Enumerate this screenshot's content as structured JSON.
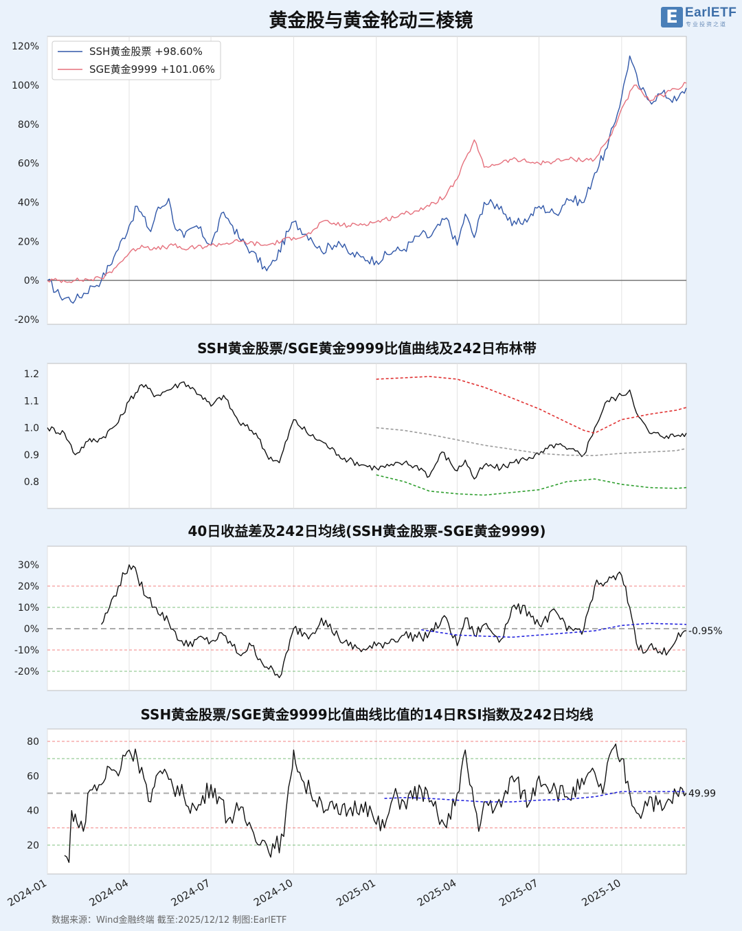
{
  "header": {
    "title": "黄金股与黄金轮动三棱镜",
    "logo_mark": "E",
    "logo_text": "EarlETF",
    "logo_sub": "专业投资之道"
  },
  "footer": {
    "source": "数据来源：Wind金融终端 截至:2025/12/12 制图:EarlETF"
  },
  "colors": {
    "ssh": "#3057a8",
    "sge": "#e5707c",
    "upper": "#e03030",
    "mid": "#999999",
    "lower": "#2e9e2e",
    "ma": "#2222dd",
    "red_guide": "#f08080",
    "green_guide": "#7cbf7c"
  },
  "x_ticks": [
    "2024-01",
    "2024-04",
    "2024-07",
    "2024-10",
    "2025-01",
    "2025-04",
    "2025-07",
    "2025-10"
  ],
  "chart_data": [
    {
      "type": "line",
      "title": "",
      "ylim": [
        -20,
        125
      ],
      "y_ticks": [
        "120%",
        "100%",
        "80%",
        "60%",
        "40%",
        "20%",
        "0%",
        "-20%"
      ],
      "legend_position": "top-left",
      "legend": [
        "SSH黄金股票  +98.60%",
        "SGE黄金9999  +101.06%"
      ],
      "series": [
        {
          "name": "SSH黄金股票",
          "x": [
            "2024-01",
            "2024-01-15",
            "2024-02",
            "2024-02-20",
            "2024-03",
            "2024-03-15",
            "2024-04",
            "2024-04-10",
            "2024-04-25",
            "2024-05",
            "2024-05-15",
            "2024-05-20",
            "2024-06",
            "2024-06-15",
            "2024-07",
            "2024-07-15",
            "2024-07-25",
            "2024-08",
            "2024-08-15",
            "2024-09",
            "2024-09-10",
            "2024-09-25",
            "2024-10",
            "2024-10-20",
            "2024-11",
            "2024-11-20",
            "2024-12",
            "2024-12-15",
            "2025-01",
            "2025-01-20",
            "2025-02",
            "2025-02-20",
            "2025-03",
            "2025-03-20",
            "2025-04",
            "2025-04-10",
            "2025-04-20",
            "2025-05",
            "2025-05-20",
            "2025-06",
            "2025-06-20",
            "2025-07",
            "2025-07-20",
            "2025-08",
            "2025-08-20",
            "2025-09",
            "2025-09-15",
            "2025-10",
            "2025-10-10",
            "2025-10-20",
            "2025-11",
            "2025-11-15",
            "2025-12",
            "2025-12-12"
          ],
          "values": [
            0,
            -8,
            -10,
            -3,
            0,
            12,
            28,
            38,
            25,
            35,
            42,
            30,
            22,
            28,
            18,
            35,
            28,
            22,
            15,
            5,
            10,
            25,
            30,
            22,
            15,
            20,
            14,
            12,
            10,
            15,
            16,
            24,
            22,
            32,
            18,
            34,
            22,
            40,
            38,
            28,
            32,
            38,
            34,
            42,
            40,
            55,
            68,
            94,
            115,
            100,
            92,
            96,
            92,
            98.6
          ]
        },
        {
          "name": "SGE黄金9999",
          "x": [
            "2024-01",
            "2024-02",
            "2024-03",
            "2024-03-15",
            "2024-04",
            "2024-04-15",
            "2024-05",
            "2024-05-20",
            "2024-06",
            "2024-07",
            "2024-08",
            "2024-09",
            "2024-10",
            "2024-10-20",
            "2024-11",
            "2024-12",
            "2025-01",
            "2025-02",
            "2025-03",
            "2025-03-20",
            "2025-04",
            "2025-04-20",
            "2025-05",
            "2025-06",
            "2025-07",
            "2025-08",
            "2025-09",
            "2025-09-20",
            "2025-10",
            "2025-10-15",
            "2025-11",
            "2025-12",
            "2025-12-12"
          ],
          "values": [
            0,
            0,
            1,
            6,
            14,
            18,
            16,
            18,
            16,
            18,
            20,
            18,
            22,
            24,
            30,
            28,
            30,
            34,
            38,
            44,
            52,
            72,
            58,
            62,
            60,
            62,
            62,
            75,
            88,
            100,
            92,
            98,
            101.06
          ]
        }
      ]
    },
    {
      "type": "line",
      "title": "SSH黄金股票/SGE黄金9999比值曲线及242日布林带",
      "ylim": [
        0.71,
        1.24
      ],
      "y_ticks": [
        "1.2",
        "1.1",
        "1.0",
        "0.9",
        "0.8"
      ],
      "series": [
        {
          "name": "比值",
          "x": [
            "2024-01",
            "2024-01-20",
            "2024-02",
            "2024-02-15",
            "2024-03",
            "2024-03-20",
            "2024-04",
            "2024-04-15",
            "2024-05",
            "2024-05-20",
            "2024-06",
            "2024-06-20",
            "2024-07",
            "2024-07-15",
            "2024-08",
            "2024-08-20",
            "2024-09",
            "2024-09-15",
            "2024-10",
            "2024-10-20",
            "2024-11",
            "2024-11-20",
            "2024-12",
            "2024-12-20",
            "2025-01",
            "2025-01-20",
            "2025-02",
            "2025-02-20",
            "2025-03",
            "2025-03-15",
            "2025-04",
            "2025-04-10",
            "2025-04-20",
            "2025-05",
            "2025-05-20",
            "2025-06",
            "2025-06-20",
            "2025-07",
            "2025-07-20",
            "2025-08",
            "2025-08-20",
            "2025-09",
            "2025-09-15",
            "2025-10",
            "2025-10-10",
            "2025-10-20",
            "2025-11",
            "2025-11-20",
            "2025-12",
            "2025-12-12"
          ],
          "values": [
            1.0,
            0.98,
            0.9,
            0.95,
            0.96,
            1.02,
            1.1,
            1.16,
            1.12,
            1.15,
            1.17,
            1.12,
            1.08,
            1.12,
            1.02,
            0.98,
            0.9,
            0.87,
            1.03,
            0.97,
            0.95,
            0.9,
            0.88,
            0.86,
            0.85,
            0.86,
            0.87,
            0.85,
            0.82,
            0.91,
            0.84,
            0.88,
            0.81,
            0.86,
            0.85,
            0.87,
            0.89,
            0.9,
            0.94,
            0.92,
            0.9,
            1.0,
            1.1,
            1.12,
            1.14,
            1.04,
            0.98,
            0.97,
            0.97,
            0.98
          ]
        },
        {
          "name": "上轨",
          "x": [
            "2025-01",
            "2025-02",
            "2025-03",
            "2025-04",
            "2025-05",
            "2025-06",
            "2025-07",
            "2025-08",
            "2025-08-20",
            "2025-09",
            "2025-10",
            "2025-11",
            "2025-12",
            "2025-12-12"
          ],
          "values": [
            1.18,
            1.185,
            1.19,
            1.18,
            1.15,
            1.11,
            1.07,
            1.02,
            0.99,
            0.98,
            1.03,
            1.05,
            1.065,
            1.075
          ]
        },
        {
          "name": "中轨",
          "x": [
            "2025-01",
            "2025-02",
            "2025-03",
            "2025-04",
            "2025-05",
            "2025-06",
            "2025-07",
            "2025-08",
            "2025-09",
            "2025-10",
            "2025-11",
            "2025-12",
            "2025-12-12"
          ],
          "values": [
            1.0,
            0.99,
            0.975,
            0.955,
            0.935,
            0.92,
            0.905,
            0.898,
            0.897,
            0.905,
            0.91,
            0.915,
            0.923
          ]
        },
        {
          "name": "下轨",
          "x": [
            "2025-01",
            "2025-02",
            "2025-03",
            "2025-04",
            "2025-05",
            "2025-06",
            "2025-07",
            "2025-08",
            "2025-09",
            "2025-10",
            "2025-11",
            "2025-12",
            "2025-12-12"
          ],
          "values": [
            0.825,
            0.8,
            0.765,
            0.755,
            0.75,
            0.76,
            0.77,
            0.8,
            0.81,
            0.79,
            0.778,
            0.775,
            0.778
          ]
        }
      ]
    },
    {
      "type": "line",
      "title": "40日收益差及242日均线(SSH黄金股票-SGE黄金9999)",
      "ylim": [
        -28,
        38
      ],
      "y_ticks": [
        "30%",
        "20%",
        "10%",
        "0%",
        "-10%",
        "-20%"
      ],
      "guides": {
        "red": [
          20,
          -10
        ],
        "green": [
          10,
          -20
        ],
        "gray": [
          0
        ]
      },
      "end_label": "-0.95%",
      "series": [
        {
          "name": "收益差",
          "x": [
            "2024-03",
            "2024-03-10",
            "2024-03-20",
            "2024-04",
            "2024-04-10",
            "2024-04-20",
            "2024-05",
            "2024-05-15",
            "2024-06",
            "2024-06-15",
            "2024-07",
            "2024-07-15",
            "2024-08",
            "2024-08-15",
            "2024-09",
            "2024-09-15",
            "2024-09-25",
            "2024-10",
            "2024-10-20",
            "2024-11",
            "2024-11-20",
            "2024-12",
            "2024-12-20",
            "2025-01",
            "2025-01-20",
            "2025-02",
            "2025-02-20",
            "2025-03",
            "2025-03-20",
            "2025-04",
            "2025-04-10",
            "2025-04-20",
            "2025-05",
            "2025-05-20",
            "2025-06",
            "2025-06-20",
            "2025-07",
            "2025-07-20",
            "2025-08",
            "2025-08-20",
            "2025-09",
            "2025-09-15",
            "2025-10",
            "2025-10-10",
            "2025-10-20",
            "2025-11",
            "2025-11-15",
            "2025-12",
            "2025-12-12"
          ],
          "values": [
            2,
            10,
            20,
            30,
            25,
            15,
            10,
            3,
            -8,
            -5,
            -6,
            -3,
            -12,
            -8,
            -18,
            -23,
            -10,
            0,
            -3,
            5,
            -4,
            -8,
            -10,
            -8,
            -5,
            -3,
            -4,
            -2,
            5,
            -8,
            5,
            -3,
            2,
            -5,
            10,
            8,
            2,
            8,
            -1,
            0,
            20,
            22,
            25,
            10,
            -10,
            -8,
            -12,
            -5,
            -0.95
          ]
        },
        {
          "name": "242日均线",
          "x": [
            "2025-02-20",
            "2025-04",
            "2025-05",
            "2025-06",
            "2025-07",
            "2025-08",
            "2025-09",
            "2025-10",
            "2025-11",
            "2025-12-12"
          ],
          "values": [
            -0.5,
            -3,
            -3.5,
            -4,
            -3,
            -2,
            -1,
            1.5,
            2.5,
            2
          ]
        }
      ]
    },
    {
      "type": "line",
      "title": "SSH黄金股票/SGE黄金9999比值曲线比值的14日RSI指数及242日均线",
      "ylim": [
        4,
        85
      ],
      "y_ticks": [
        "80",
        "60",
        "40",
        "20"
      ],
      "guides": {
        "red": [
          80,
          30
        ],
        "green": [
          70,
          20
        ],
        "gray": [
          50
        ]
      },
      "end_label": "49.99",
      "series": [
        {
          "name": "RSI",
          "x": [
            "2024-01-20",
            "2024-01-25",
            "2024-01-28",
            "2024-02",
            "2024-02-05",
            "2024-02-10",
            "2024-02-15",
            "2024-02-20",
            "2024-03",
            "2024-03-10",
            "2024-03-20",
            "2024-03-25",
            "2024-04",
            "2024-04-10",
            "2024-04-15",
            "2024-04-20",
            "2024-04-25",
            "2024-05",
            "2024-05-15",
            "2024-06",
            "2024-06-15",
            "2024-07",
            "2024-07-10",
            "2024-07-20",
            "2024-08",
            "2024-08-15",
            "2024-09",
            "2024-09-10",
            "2024-09-20",
            "2024-09-28",
            "2024-10",
            "2024-10-10",
            "2024-10-20",
            "2024-11",
            "2024-11-20",
            "2024-12",
            "2024-12-20",
            "2025-01",
            "2025-01-10",
            "2025-01-20",
            "2025-02",
            "2025-02-20",
            "2025-03",
            "2025-03-10",
            "2025-03-20",
            "2025-04",
            "2025-04-10",
            "2025-04-15",
            "2025-04-25",
            "2025-05",
            "2025-05-20",
            "2025-06",
            "2025-06-20",
            "2025-07",
            "2025-07-20",
            "2025-08",
            "2025-08-20",
            "2025-09",
            "2025-09-10",
            "2025-09-20",
            "2025-10",
            "2025-10-10",
            "2025-10-20",
            "2025-11",
            "2025-11-15",
            "2025-12",
            "2025-12-12"
          ],
          "values": [
            14,
            10,
            40,
            38,
            30,
            28,
            50,
            52,
            55,
            65,
            60,
            72,
            75,
            70,
            65,
            55,
            45,
            60,
            58,
            48,
            40,
            55,
            48,
            35,
            40,
            30,
            20,
            18,
            25,
            60,
            75,
            58,
            50,
            45,
            38,
            40,
            45,
            32,
            30,
            48,
            45,
            52,
            45,
            38,
            30,
            50,
            75,
            55,
            28,
            45,
            42,
            60,
            44,
            60,
            52,
            48,
            55,
            62,
            50,
            75,
            70,
            50,
            38,
            48,
            40,
            50,
            49.99
          ]
        },
        {
          "name": "242日均线",
          "x": [
            "2025-01-10",
            "2025-02",
            "2025-03",
            "2025-04",
            "2025-05",
            "2025-06",
            "2025-07",
            "2025-08",
            "2025-09",
            "2025-10",
            "2025-11",
            "2025-12-12"
          ],
          "values": [
            47,
            47.5,
            47,
            46,
            45,
            45,
            46,
            46.5,
            48,
            51,
            51,
            51
          ]
        }
      ]
    }
  ]
}
